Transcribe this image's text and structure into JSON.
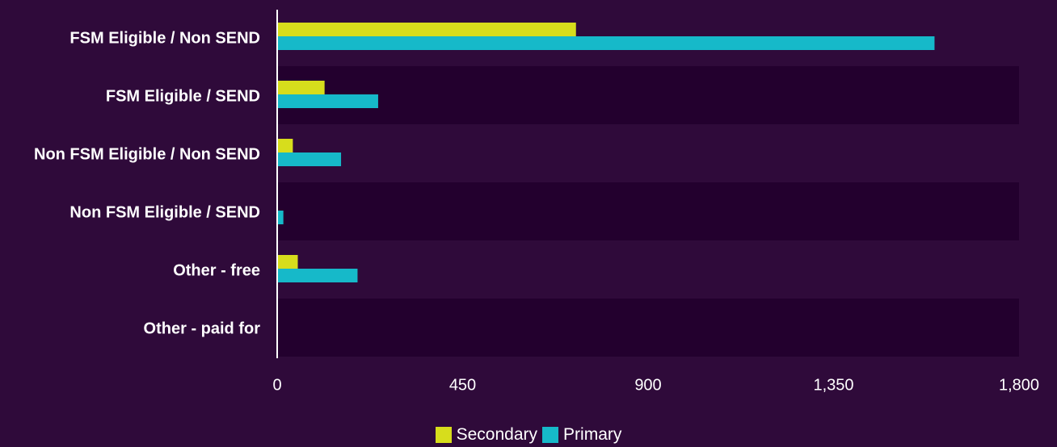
{
  "chart_data": {
    "type": "bar",
    "orientation": "horizontal",
    "categories": [
      "FSM Eligible / Non SEND",
      "FSM Eligible / SEND",
      "Non FSM Eligible / Non SEND",
      "Non FSM Eligible / SEND",
      "Other - free",
      "Other - paid for"
    ],
    "series": [
      {
        "name": "Secondary",
        "color": "#d7dd1c",
        "values": [
          725,
          115,
          38,
          0,
          50,
          0
        ]
      },
      {
        "name": "Primary",
        "color": "#16b9c9",
        "values": [
          1595,
          245,
          155,
          15,
          195,
          0
        ]
      }
    ],
    "xlim": [
      0,
      1800
    ],
    "xticks": [
      0,
      450,
      900,
      1350,
      1800
    ],
    "xtick_labels": [
      "0",
      "450",
      "900",
      "1,350",
      "1,800"
    ],
    "legend_position": "bottom-center",
    "band_colors": [
      "#2f0a3a",
      "#23002e"
    ]
  }
}
